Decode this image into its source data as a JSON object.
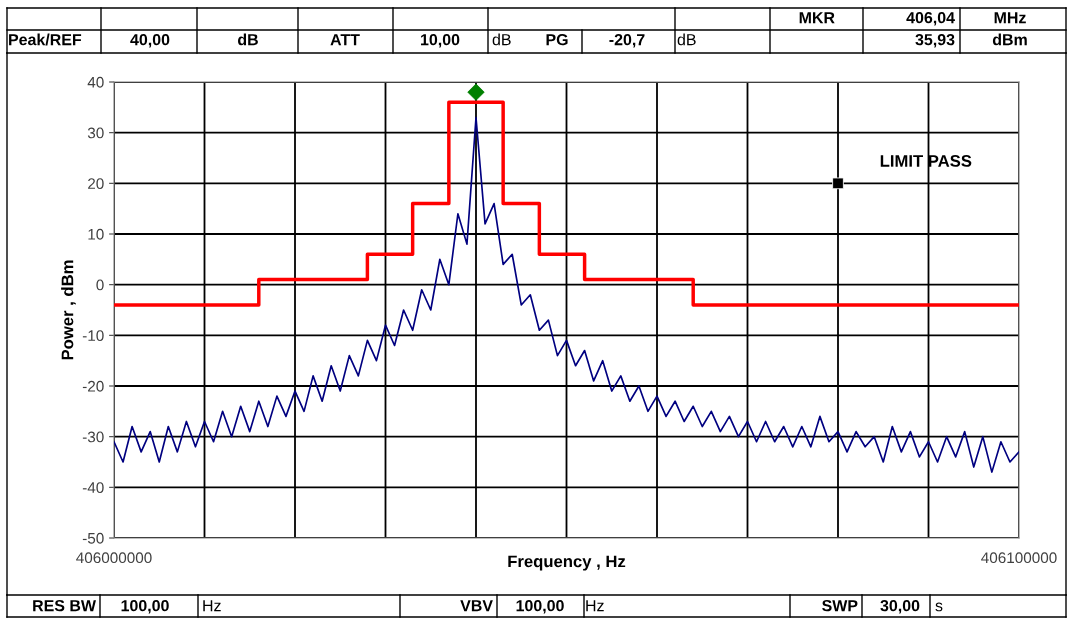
{
  "chart_data": {
    "type": "line",
    "xlabel": "Frequency , Hz",
    "ylabel": "Power , dBm",
    "xlim": [
      406000000,
      406100000
    ],
    "xticks": [
      406000000,
      {
        "value": 406010000,
        "label": null
      },
      {
        "value": 406020000,
        "label": null
      },
      {
        "value": 406030000,
        "label": null
      },
      {
        "value": 406040000,
        "label": null
      },
      {
        "value": 406050000,
        "label": null
      },
      {
        "value": 406060000,
        "label": null
      },
      {
        "value": 406070000,
        "label": null
      },
      {
        "value": 406080000,
        "label": null
      },
      {
        "value": 406090000,
        "label": null
      },
      406100000
    ],
    "ylim": [
      -50,
      40
    ],
    "yticks": [
      -50,
      -40,
      -30,
      -20,
      -10,
      0,
      10,
      20,
      30,
      40
    ],
    "grid": true,
    "legend": false,
    "series": [
      {
        "color": "#000080",
        "x": [
          406000000,
          406001000,
          406002000,
          406003000,
          406004000,
          406005000,
          406006000,
          406007000,
          406008000,
          406009000,
          406010000,
          406011000,
          406012000,
          406013000,
          406014000,
          406015000,
          406016000,
          406017000,
          406018000,
          406019000,
          406020000,
          406021000,
          406022000,
          406023000,
          406024000,
          406025000,
          406026000,
          406027000,
          406028000,
          406029000,
          406030000,
          406031000,
          406032000,
          406033000,
          406034000,
          406035000,
          406036000,
          406037000,
          406038000,
          406039000,
          406040000,
          406041000,
          406042000,
          406043000,
          406044000,
          406045000,
          406046000,
          406047000,
          406048000,
          406049000,
          406050000,
          406051000,
          406052000,
          406053000,
          406054000,
          406055000,
          406056000,
          406057000,
          406058000,
          406059000,
          406060000,
          406061000,
          406062000,
          406063000,
          406064000,
          406065000,
          406066000,
          406067000,
          406068000,
          406069000,
          406070000,
          406071000,
          406072000,
          406073000,
          406074000,
          406075000,
          406076000,
          406077000,
          406078000,
          406079000,
          406080000,
          406081000,
          406082000,
          406083000,
          406084000,
          406085000,
          406086000,
          406087000,
          406088000,
          406089000,
          406090000,
          406091000,
          406092000,
          406093000,
          406094000,
          406095000,
          406096000,
          406097000,
          406098000,
          406099000,
          406100000
        ],
        "values": [
          -31,
          -35,
          -28,
          -33,
          -29,
          -35,
          -28,
          -33,
          -27,
          -32,
          -27,
          -31,
          -25,
          -30,
          -24,
          -29,
          -23,
          -28,
          -22,
          -26,
          -21,
          -25,
          -18,
          -23,
          -16,
          -21,
          -14,
          -18,
          -11,
          -15,
          -8,
          -12,
          -5,
          -9,
          -1,
          -5,
          5,
          0,
          14,
          8,
          33,
          12,
          16,
          4,
          6,
          -4,
          -2,
          -9,
          -7,
          -14,
          -11,
          -16,
          -13,
          -19,
          -15,
          -21,
          -18,
          -23,
          -20,
          -25,
          -22,
          -26,
          -23,
          -27,
          -24,
          -28,
          -25,
          -29,
          -26,
          -30,
          -27,
          -31,
          -27,
          -31,
          -28,
          -32,
          -28,
          -32,
          -26,
          -31,
          -29,
          -33,
          -29,
          -32,
          -30,
          -35,
          -28,
          -33,
          -29,
          -34,
          -31,
          -35,
          -30,
          -34,
          -29,
          -36,
          -30,
          -37,
          -31,
          -35,
          -33
        ]
      },
      {
        "type": "step",
        "color": "#ff0000",
        "x": [
          406000000,
          406016000,
          406028000,
          406033000,
          406037000,
          406043000,
          406047000,
          406052000,
          406064000,
          406100000
        ],
        "values": [
          -4,
          1,
          6,
          16,
          36,
          16,
          6,
          1,
          -4,
          -4
        ]
      },
      {
        "type": "scatter",
        "color": "#008000",
        "marker": "diamond",
        "x": [
          406040000
        ],
        "values": [
          38
        ]
      },
      {
        "type": "scatter",
        "color": "#000000",
        "marker": "square",
        "x": [
          406080000
        ],
        "values": [
          20
        ]
      }
    ],
    "annotations": [
      {
        "text": "LIMIT PASS",
        "x": 406080000,
        "y": 20
      },
      "MKR",
      "406,04",
      "MHz",
      "Peak/REF",
      "40,00",
      "dB",
      "ATT",
      "10,00",
      "dB",
      "PG",
      "-20,7",
      "dB",
      "35,93",
      "dBm",
      "RES BW",
      "100,00",
      "Hz",
      "VBV",
      "100,00",
      "Hz",
      "SWP",
      "30,00",
      "s"
    ]
  }
}
